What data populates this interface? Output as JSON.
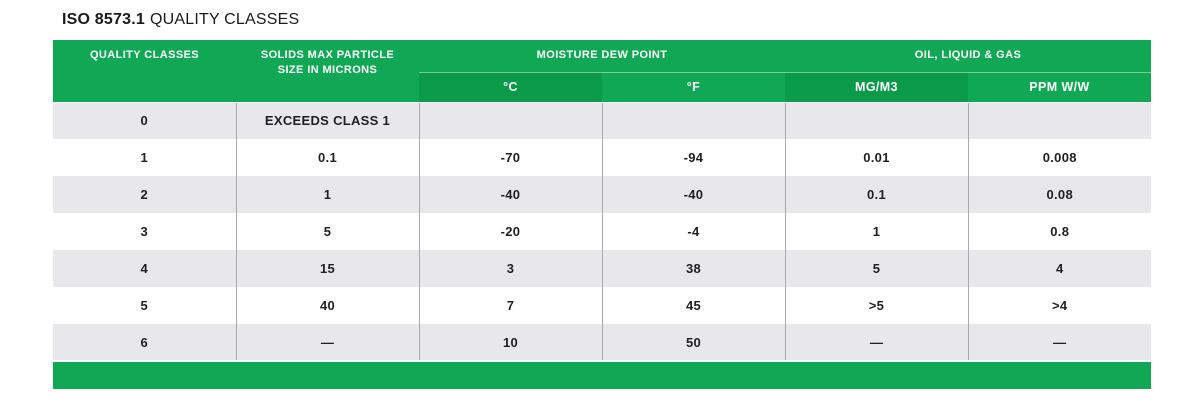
{
  "title": {
    "bold": "ISO 8573.1",
    "regular": "QUALITY CLASSES"
  },
  "colors": {
    "header_green": "#10a854",
    "header_green_dark": "#0b9a4a",
    "stripe_gray": "#e8e8ea",
    "row_white": "#ffffff",
    "cell_border": "#a9a9ad",
    "body_text": "#1f1f1f",
    "header_text": "#ffffff"
  },
  "table": {
    "header": {
      "quality_classes": "QUALITY CLASSES",
      "solids": "SOLIDS MAX PARTICLE SIZE IN MICRONS",
      "moisture": "MOISTURE DEW POINT",
      "oil": "OIL, LIQUID & GAS",
      "sub": {
        "c": "°C",
        "f": "°F",
        "mgm3": "MG/M3",
        "ppm": "PPM W/W"
      }
    },
    "rows": [
      {
        "cells": [
          "0",
          "EXCEEDS CLASS 1",
          "",
          "",
          "",
          ""
        ]
      },
      {
        "cells": [
          "1",
          "0.1",
          "-70",
          "-94",
          "0.01",
          "0.008"
        ]
      },
      {
        "cells": [
          "2",
          "1",
          "-40",
          "-40",
          "0.1",
          "0.08"
        ]
      },
      {
        "cells": [
          "3",
          "5",
          "-20",
          "-4",
          "1",
          "0.8"
        ]
      },
      {
        "cells": [
          "4",
          "15",
          "3",
          "38",
          "5",
          "4"
        ]
      },
      {
        "cells": [
          "5",
          "40",
          "7",
          "45",
          ">5",
          ">4"
        ]
      },
      {
        "cells": [
          "6",
          "—",
          "10",
          "50",
          "—",
          "—"
        ]
      }
    ]
  },
  "chart_data": {
    "type": "table",
    "title": "ISO 8573.1 QUALITY CLASSES",
    "column_groups": [
      {
        "label": "QUALITY CLASSES",
        "span": 1
      },
      {
        "label": "SOLIDS MAX PARTICLE SIZE IN MICRONS",
        "span": 1
      },
      {
        "label": "MOISTURE DEW POINT",
        "span": 2,
        "subcolumns": [
          "°C",
          "°F"
        ]
      },
      {
        "label": "OIL, LIQUID & GAS",
        "span": 2,
        "subcolumns": [
          "MG/M3",
          "PPM W/W"
        ]
      }
    ],
    "columns": [
      "QUALITY CLASSES",
      "SOLIDS MAX PARTICLE SIZE IN MICRONS",
      "°C",
      "°F",
      "MG/M3",
      "PPM W/W"
    ],
    "rows": [
      [
        "0",
        "EXCEEDS CLASS 1",
        "",
        "",
        "",
        ""
      ],
      [
        "1",
        "0.1",
        "-70",
        "-94",
        "0.01",
        "0.008"
      ],
      [
        "2",
        "1",
        "-40",
        "-40",
        "0.1",
        "0.08"
      ],
      [
        "3",
        "5",
        "-20",
        "-4",
        "1",
        "0.8"
      ],
      [
        "4",
        "15",
        "3",
        "38",
        "5",
        "4"
      ],
      [
        "5",
        "40",
        "7",
        "45",
        ">5",
        ">4"
      ],
      [
        "6",
        "—",
        "10",
        "50",
        "—",
        "—"
      ]
    ]
  }
}
